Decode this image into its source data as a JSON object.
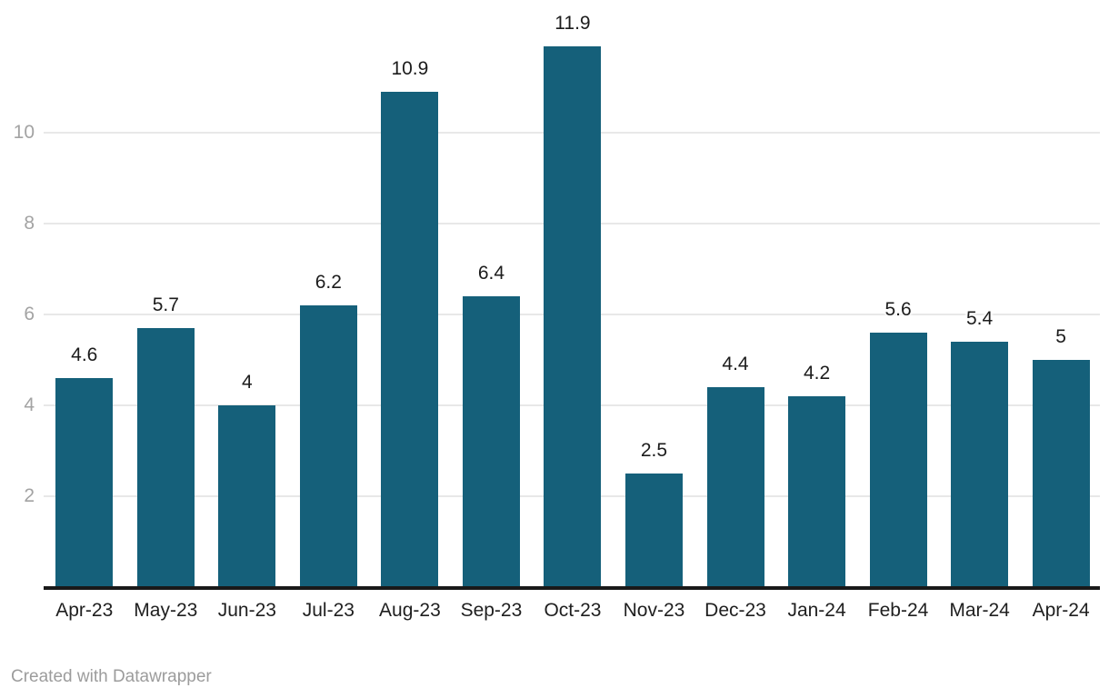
{
  "chart_data": {
    "type": "bar",
    "categories": [
      "Apr-23",
      "May-23",
      "Jun-23",
      "Jul-23",
      "Aug-23",
      "Sep-23",
      "Oct-23",
      "Nov-23",
      "Dec-23",
      "Jan-24",
      "Feb-24",
      "Mar-24",
      "Apr-24"
    ],
    "values": [
      4.6,
      5.7,
      4,
      6.2,
      10.9,
      6.4,
      11.9,
      2.5,
      4.4,
      4.2,
      5.6,
      5.4,
      5
    ],
    "value_labels": [
      "4.6",
      "5.7",
      "4",
      "6.2",
      "10.9",
      "6.4",
      "11.9",
      "2.5",
      "4.4",
      "4.2",
      "5.6",
      "5.4",
      "5"
    ],
    "title": "",
    "xlabel": "",
    "ylabel": "",
    "y_ticks": [
      2,
      4,
      6,
      8,
      10
    ],
    "ylim": [
      0,
      12.9
    ],
    "grid": "horizontal",
    "legend": "none",
    "bar_color": "#15607a"
  },
  "footer": {
    "credit": "Created with Datawrapper"
  },
  "colors": {
    "bar": "#15607a",
    "gridline": "#e8e8e8",
    "axis_line": "#191919",
    "tick_text": "#a3a3a3",
    "label_text": "#1c1c1c",
    "footer_text": "#9c9c9c",
    "background": "#ffffff"
  }
}
